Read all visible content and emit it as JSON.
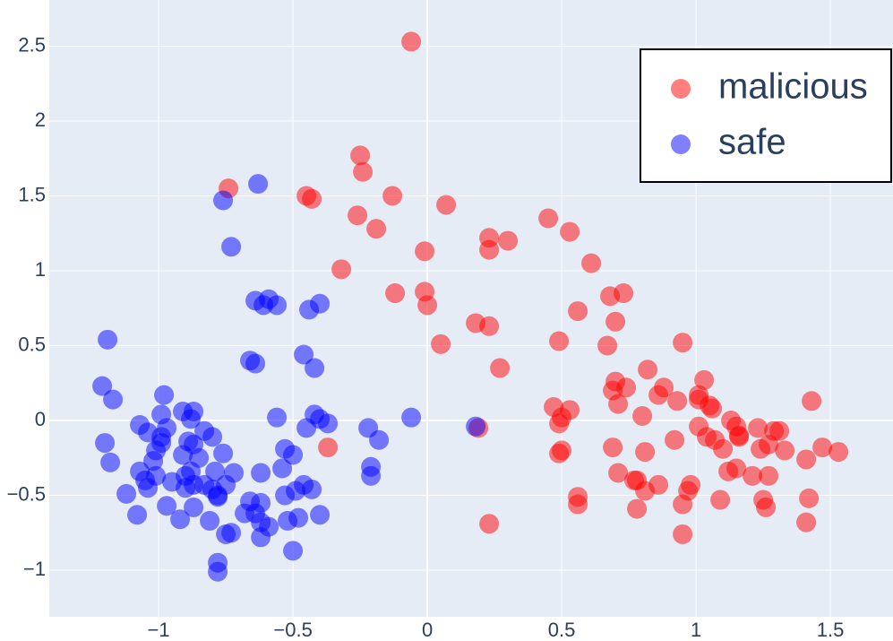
{
  "chart_data": {
    "type": "scatter",
    "xlim": [
      -1.407,
      1.733
    ],
    "ylim": [
      -1.311,
      2.808
    ],
    "xticks": [
      {
        "value": -1,
        "label": "−1"
      },
      {
        "value": -0.5,
        "label": "−0.5"
      },
      0,
      0.5,
      1,
      1.5
    ],
    "yticks": [
      {
        "value": -1,
        "label": "−1"
      },
      {
        "value": -0.5,
        "label": "−0.5"
      },
      0,
      0.5,
      1,
      1.5,
      2,
      2.5
    ],
    "grid": true,
    "legend": "top right",
    "marker_opacity": 0.5,
    "series": [
      {
        "name": "malicious",
        "color": "#ff0000",
        "x": [
          -0.06,
          -0.74,
          -0.25,
          -0.24,
          -0.45,
          -0.43,
          -0.13,
          0.07,
          -0.26,
          -0.19,
          -0.01,
          0.23,
          0.3,
          0.23,
          0.45,
          0.53,
          0.61,
          -0.32,
          -0.12,
          -0.01,
          0.0,
          0.68,
          0.73,
          0.56,
          0.7,
          0.18,
          0.23,
          0.05,
          0.49,
          0.67,
          0.95,
          0.27,
          0.82,
          1.03,
          0.7,
          0.74,
          0.69,
          0.88,
          0.86,
          0.71,
          0.93,
          1.01,
          1.01,
          1.05,
          1.06,
          0.47,
          0.53,
          0.5,
          0.49,
          0.8,
          1.43,
          1.13,
          1.01,
          1.15,
          1.23,
          1.29,
          1.31,
          1.16,
          1.16,
          1.04,
          1.07,
          0.92,
          1.27,
          1.24,
          1.1,
          1.47,
          1.33,
          1.53,
          1.41,
          -0.37,
          0.19,
          0.69,
          0.81,
          0.5,
          0.49,
          0.71,
          1.12,
          1.15,
          1.21,
          1.27,
          0.77,
          0.78,
          0.86,
          0.81,
          0.98,
          0.97,
          0.56,
          0.56,
          1.09,
          1.25,
          1.26,
          1.42,
          0.95,
          0.78,
          0.23,
          1.41,
          0.95
        ],
        "values": [
          2.53,
          1.55,
          1.77,
          1.66,
          1.5,
          1.48,
          1.5,
          1.44,
          1.37,
          1.28,
          1.13,
          1.22,
          1.2,
          1.14,
          1.35,
          1.26,
          1.05,
          1.01,
          0.85,
          0.86,
          0.77,
          0.83,
          0.85,
          0.73,
          0.66,
          0.65,
          0.63,
          0.51,
          0.53,
          0.5,
          0.52,
          0.35,
          0.34,
          0.27,
          0.26,
          0.22,
          0.2,
          0.22,
          0.17,
          0.11,
          0.13,
          0.17,
          0.14,
          0.1,
          0.08,
          0.09,
          0.07,
          0.02,
          -0.02,
          0.03,
          0.13,
          0.0,
          -0.04,
          -0.04,
          -0.05,
          -0.07,
          -0.07,
          -0.1,
          -0.11,
          -0.11,
          -0.13,
          -0.13,
          -0.16,
          -0.19,
          -0.19,
          -0.18,
          -0.2,
          -0.21,
          -0.26,
          -0.18,
          -0.05,
          -0.18,
          -0.21,
          -0.2,
          -0.22,
          -0.35,
          -0.34,
          -0.32,
          -0.37,
          -0.37,
          -0.4,
          -0.4,
          -0.43,
          -0.47,
          -0.43,
          -0.47,
          -0.51,
          -0.56,
          -0.53,
          -0.53,
          -0.58,
          -0.52,
          -0.56,
          -0.59,
          -0.69,
          -0.68,
          -0.76
        ]
      },
      {
        "name": "safe",
        "color": "#0000ff",
        "x": [
          -0.63,
          -0.76,
          -0.73,
          -0.64,
          -0.59,
          -0.61,
          -0.56,
          -0.4,
          -0.44,
          -1.19,
          -0.46,
          -0.66,
          -0.64,
          -0.42,
          -1.21,
          -1.17,
          -0.98,
          -0.99,
          -0.91,
          -0.87,
          -0.88,
          -1.07,
          -0.97,
          -1.04,
          -0.99,
          -0.83,
          -0.8,
          -0.56,
          -0.42,
          -0.4,
          -0.37,
          -0.45,
          -0.22,
          -0.18,
          -0.06,
          0.18,
          -1.2,
          -0.99,
          -0.89,
          -0.87,
          -1.01,
          -0.91,
          -0.85,
          -0.76,
          -0.53,
          -0.5,
          -1.18,
          -1.02,
          -1.07,
          -1.01,
          -0.9,
          -0.88,
          -0.79,
          -0.72,
          -0.62,
          -0.54,
          -0.21,
          -0.21,
          -1.05,
          -0.95,
          -0.83,
          -1.04,
          -0.9,
          -0.87,
          -0.8,
          -0.75,
          -0.46,
          -0.43,
          -0.49,
          -1.12,
          -0.78,
          -0.78,
          -0.53,
          -0.97,
          -0.87,
          -0.66,
          -0.62,
          -1.08,
          -0.68,
          -0.64,
          -0.92,
          -0.81,
          -0.62,
          -0.59,
          -0.52,
          -0.48,
          -0.4,
          -0.75,
          -0.73,
          -0.62,
          -0.5,
          -0.78,
          -0.78
        ],
        "values": [
          1.58,
          1.47,
          1.16,
          0.8,
          0.81,
          0.77,
          0.77,
          0.78,
          0.74,
          0.54,
          0.44,
          0.4,
          0.38,
          0.35,
          0.23,
          0.14,
          0.17,
          0.04,
          0.06,
          0.06,
          0.01,
          -0.03,
          -0.05,
          -0.08,
          -0.11,
          -0.07,
          -0.11,
          0.02,
          0.04,
          0.01,
          -0.02,
          -0.05,
          -0.05,
          -0.13,
          0.02,
          -0.04,
          -0.15,
          -0.15,
          -0.14,
          -0.16,
          -0.2,
          -0.23,
          -0.25,
          -0.22,
          -0.19,
          -0.23,
          -0.28,
          -0.27,
          -0.34,
          -0.37,
          -0.37,
          -0.34,
          -0.34,
          -0.35,
          -0.35,
          -0.32,
          -0.31,
          -0.37,
          -0.4,
          -0.41,
          -0.43,
          -0.45,
          -0.45,
          -0.43,
          -0.46,
          -0.43,
          -0.43,
          -0.46,
          -0.47,
          -0.49,
          -0.5,
          -0.51,
          -0.5,
          -0.57,
          -0.58,
          -0.54,
          -0.55,
          -0.63,
          -0.62,
          -0.62,
          -0.66,
          -0.67,
          -0.68,
          -0.71,
          -0.67,
          -0.65,
          -0.63,
          -0.76,
          -0.75,
          -0.78,
          -0.87,
          -0.95,
          -1.01
        ]
      }
    ]
  }
}
